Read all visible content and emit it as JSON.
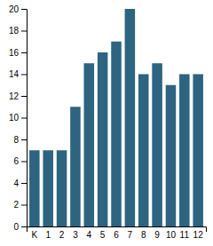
{
  "chart_data": {
    "type": "bar",
    "categories": [
      "K",
      "1",
      "2",
      "3",
      "4",
      "5",
      "6",
      "7",
      "8",
      "9",
      "10",
      "11",
      "12"
    ],
    "values": [
      7,
      7,
      7,
      11,
      15,
      16,
      17,
      20,
      14,
      15,
      13,
      14,
      14
    ],
    "color": "#2d6480",
    "ylim": [
      0,
      20
    ],
    "yticks": [
      0,
      2,
      4,
      6,
      8,
      10,
      12,
      14,
      16,
      18,
      20
    ],
    "grid": false
  }
}
